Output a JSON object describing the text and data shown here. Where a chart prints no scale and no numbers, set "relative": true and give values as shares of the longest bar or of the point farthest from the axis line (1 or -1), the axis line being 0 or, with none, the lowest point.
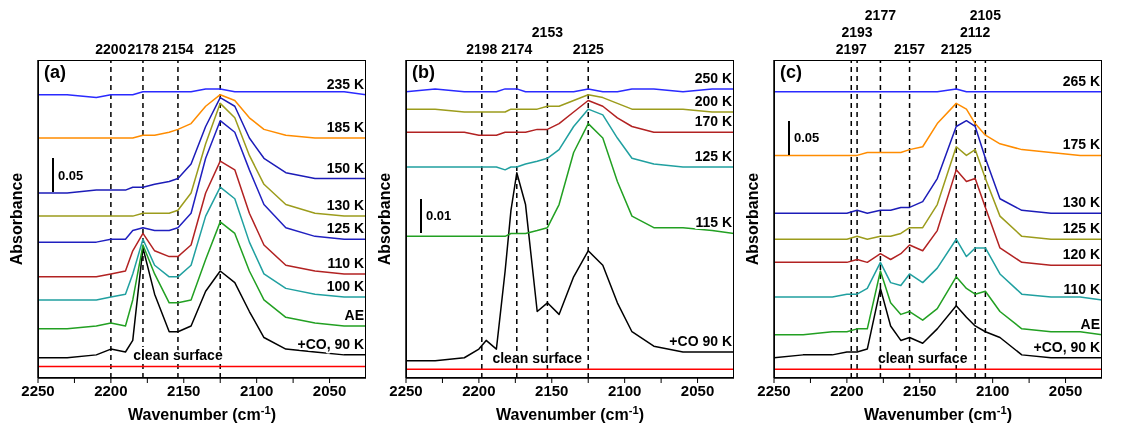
{
  "chart_data": [
    {
      "type": "line",
      "title": "(a)",
      "xlabel": "Wavenumber (cm$^{-1}$)",
      "ylabel": "Absorbance",
      "relative": true,
      "xlim": [
        2250,
        2025
      ],
      "xticks": [
        2250,
        {
          "value": 2225,
          "label": null
        },
        2200,
        {
          "value": 2175,
          "label": null
        },
        2150,
        {
          "value": 2125,
          "label": null
        },
        2100,
        {
          "value": 2075,
          "label": null
        },
        2050
      ],
      "x": [
        2250,
        2230,
        2210,
        2200,
        2190,
        2185,
        2178,
        2170,
        2160,
        2154,
        2145,
        2135,
        2125,
        2115,
        2105,
        2095,
        2080,
        2060,
        2040,
        2025
      ],
      "series": [
        {
          "name": "clean surface",
          "color": "#ff0000",
          "values": [
            0.04,
            0.04,
            0.04,
            0.04,
            0.04,
            0.04,
            0.04,
            0.04,
            0.04,
            0.04,
            0.04,
            0.04,
            0.04,
            0.04,
            0.04,
            0.04,
            0.04,
            0.04,
            0.04,
            0.04
          ]
        },
        {
          "name": "+CO, 90 K",
          "color": "#000000",
          "values": [
            0.07,
            0.07,
            0.08,
            0.1,
            0.09,
            0.13,
            0.45,
            0.29,
            0.16,
            0.16,
            0.18,
            0.3,
            0.37,
            0.33,
            0.23,
            0.14,
            0.1,
            0.09,
            0.08,
            0.08
          ]
        },
        {
          "name": "AE",
          "color": "#22a022",
          "values": [
            0.17,
            0.17,
            0.18,
            0.19,
            0.18,
            0.27,
            0.46,
            0.36,
            0.26,
            0.26,
            0.27,
            0.41,
            0.54,
            0.5,
            0.37,
            0.27,
            0.21,
            0.19,
            0.18,
            0.18
          ]
        },
        {
          "name": "100 K",
          "color": "#20a0a0",
          "values": [
            0.27,
            0.27,
            0.27,
            0.28,
            0.29,
            0.36,
            0.48,
            0.39,
            0.35,
            0.35,
            0.39,
            0.56,
            0.66,
            0.62,
            0.47,
            0.36,
            0.31,
            0.29,
            0.28,
            0.28
          ]
        },
        {
          "name": "110 K",
          "color": "#b22222",
          "values": [
            0.35,
            0.35,
            0.35,
            0.36,
            0.37,
            0.44,
            0.5,
            0.44,
            0.42,
            0.42,
            0.46,
            0.64,
            0.75,
            0.72,
            0.57,
            0.46,
            0.39,
            0.37,
            0.36,
            0.36
          ]
        },
        {
          "name": "125 K",
          "color": "#2020c0",
          "values": [
            0.47,
            0.47,
            0.47,
            0.48,
            0.48,
            0.51,
            0.52,
            0.51,
            0.51,
            0.52,
            0.57,
            0.76,
            0.89,
            0.85,
            0.72,
            0.6,
            0.52,
            0.49,
            0.48,
            0.48
          ]
        },
        {
          "name": "130 K",
          "color": "#9c9c1c",
          "values": [
            0.56,
            0.56,
            0.56,
            0.56,
            0.56,
            0.56,
            0.57,
            0.57,
            0.57,
            0.58,
            0.64,
            0.81,
            0.95,
            0.9,
            0.77,
            0.67,
            0.6,
            0.57,
            0.56,
            0.56
          ]
        },
        {
          "name": "150 K",
          "color": "#1c1cb8",
          "values": [
            0.64,
            0.64,
            0.65,
            0.65,
            0.65,
            0.66,
            0.66,
            0.67,
            0.68,
            0.69,
            0.74,
            0.87,
            0.97,
            0.94,
            0.83,
            0.76,
            0.71,
            0.69,
            0.69,
            0.69
          ]
        },
        {
          "name": "185 K",
          "color": "#ff8c00",
          "values": [
            0.83,
            0.83,
            0.83,
            0.83,
            0.83,
            0.83,
            0.84,
            0.84,
            0.85,
            0.86,
            0.88,
            0.94,
            0.98,
            0.96,
            0.9,
            0.86,
            0.84,
            0.83,
            0.83,
            0.83
          ]
        },
        {
          "name": "235 K",
          "color": "#2a2aff",
          "values": [
            0.98,
            0.98,
            0.97,
            0.98,
            0.98,
            0.98,
            0.99,
            0.99,
            0.99,
            0.99,
            0.99,
            1.0,
            1.0,
            0.99,
            0.99,
            0.99,
            0.99,
            0.99,
            0.99,
            0.98
          ]
        }
      ],
      "ref_lines": [
        {
          "axis": "x",
          "value": 2200,
          "label": "2200",
          "color": "#000000",
          "line_style": "dashed"
        },
        {
          "axis": "x",
          "value": 2178,
          "label": "2178",
          "color": "#000000",
          "line_style": "dashed"
        },
        {
          "axis": "x",
          "value": 2154,
          "label": "2154",
          "color": "#000000",
          "line_style": "dashed"
        },
        {
          "axis": "x",
          "value": 2125,
          "label": "2125",
          "color": "#000000",
          "line_style": "dashed"
        }
      ],
      "annotations": [
        "0.05"
      ]
    },
    {
      "type": "line",
      "title": "(b)",
      "xlabel": "Wavenumber (cm$^{-1}$)",
      "ylabel": "Absorbance",
      "relative": true,
      "xlim": [
        2250,
        2025
      ],
      "xticks": [
        2250,
        {
          "value": 2225,
          "label": null
        },
        2200,
        {
          "value": 2175,
          "label": null
        },
        2150,
        {
          "value": 2125,
          "label": null
        },
        2100,
        {
          "value": 2075,
          "label": null
        },
        2050
      ],
      "x": [
        2250,
        2230,
        2210,
        2200,
        2195,
        2188,
        2182,
        2178,
        2174,
        2168,
        2160,
        2153,
        2145,
        2135,
        2125,
        2115,
        2105,
        2095,
        2080,
        2060,
        2040,
        2025
      ],
      "series": [
        {
          "name": "clean surface",
          "color": "#ff0000",
          "values": [
            0.03,
            0.03,
            0.03,
            0.03,
            0.03,
            0.03,
            0.03,
            0.03,
            0.03,
            0.03,
            0.03,
            0.03,
            0.03,
            0.03,
            0.03,
            0.03,
            0.03,
            0.03,
            0.03,
            0.03,
            0.03,
            0.03
          ]
        },
        {
          "name": "+CO 90 K",
          "color": "#000000",
          "values": [
            0.06,
            0.06,
            0.07,
            0.1,
            0.13,
            0.1,
            0.37,
            0.58,
            0.71,
            0.6,
            0.23,
            0.26,
            0.22,
            0.35,
            0.44,
            0.39,
            0.26,
            0.16,
            0.11,
            0.09,
            0.09,
            0.09
          ]
        },
        {
          "name": "115 K",
          "color": "#22a022",
          "values": [
            0.49,
            0.49,
            0.49,
            0.49,
            0.49,
            0.49,
            0.49,
            0.5,
            0.5,
            0.5,
            0.51,
            0.52,
            0.6,
            0.78,
            0.88,
            0.83,
            0.68,
            0.56,
            0.52,
            0.52,
            0.51,
            0.5
          ]
        },
        {
          "name": "125 K",
          "color": "#20a0a0",
          "values": [
            0.73,
            0.73,
            0.73,
            0.73,
            0.73,
            0.73,
            0.72,
            0.73,
            0.73,
            0.74,
            0.75,
            0.76,
            0.79,
            0.87,
            0.93,
            0.91,
            0.83,
            0.76,
            0.74,
            0.73,
            0.73,
            0.73
          ]
        },
        {
          "name": "170 K",
          "color": "#b22222",
          "values": [
            0.85,
            0.85,
            0.85,
            0.84,
            0.84,
            0.84,
            0.85,
            0.85,
            0.85,
            0.85,
            0.86,
            0.86,
            0.88,
            0.92,
            0.96,
            0.94,
            0.9,
            0.87,
            0.85,
            0.85,
            0.85,
            0.85
          ]
        },
        {
          "name": "200 K",
          "color": "#9c9c1c",
          "values": [
            0.93,
            0.93,
            0.92,
            0.92,
            0.92,
            0.92,
            0.92,
            0.93,
            0.93,
            0.93,
            0.93,
            0.94,
            0.94,
            0.96,
            0.98,
            0.97,
            0.95,
            0.93,
            0.93,
            0.93,
            0.92,
            0.92
          ]
        },
        {
          "name": "250 K",
          "color": "#2a2aff",
          "values": [
            0.99,
            1.0,
            0.99,
            0.99,
            0.99,
            0.99,
            1.0,
            1.0,
            1.0,
            0.99,
            0.99,
            0.99,
            0.99,
            0.99,
            1.0,
            0.99,
            0.99,
            1.0,
            1.0,
            0.99,
            1.0,
            1.0
          ]
        }
      ],
      "ref_lines": [
        {
          "axis": "x",
          "value": 2198,
          "label": "2198",
          "color": "#000000",
          "line_style": "dashed"
        },
        {
          "axis": "x",
          "value": 2174,
          "label": "2174",
          "color": "#000000",
          "line_style": "dashed"
        },
        {
          "axis": "x",
          "value": 2153,
          "label": "2153",
          "color": "#000000",
          "line_style": "dashed"
        },
        {
          "axis": "x",
          "value": 2125,
          "label": "2125",
          "color": "#000000",
          "line_style": "dashed"
        }
      ],
      "annotations": [
        "0.01"
      ]
    },
    {
      "type": "line",
      "title": "(c)",
      "xlabel": "Wavenumber (cm$^{-1}$)",
      "ylabel": "Absorbance",
      "relative": true,
      "xlim": [
        2250,
        2025
      ],
      "xticks": [
        2250,
        {
          "value": 2225,
          "label": null
        },
        2200,
        {
          "value": 2175,
          "label": null
        },
        2150,
        {
          "value": 2125,
          "label": null
        },
        2100,
        {
          "value": 2075,
          "label": null
        },
        2050
      ],
      "x": [
        2250,
        2230,
        2210,
        2200,
        2193,
        2186,
        2177,
        2170,
        2163,
        2157,
        2148,
        2138,
        2125,
        2118,
        2112,
        2105,
        2095,
        2080,
        2060,
        2040,
        2025
      ],
      "series": [
        {
          "name": "clean surface",
          "color": "#ff0000",
          "values": [
            0.03,
            0.03,
            0.03,
            0.03,
            0.03,
            0.03,
            0.03,
            0.03,
            0.03,
            0.03,
            0.03,
            0.03,
            0.03,
            0.03,
            0.03,
            0.03,
            0.03,
            0.03,
            0.03,
            0.03,
            0.03
          ]
        },
        {
          "name": "+CO, 90 K",
          "color": "#000000",
          "values": [
            0.07,
            0.08,
            0.08,
            0.09,
            0.09,
            0.1,
            0.31,
            0.18,
            0.13,
            0.14,
            0.12,
            0.17,
            0.25,
            0.21,
            0.18,
            0.16,
            0.14,
            0.08,
            0.07,
            0.07,
            0.07
          ]
        },
        {
          "name": "AE",
          "color": "#22a022",
          "values": [
            0.15,
            0.15,
            0.16,
            0.16,
            0.17,
            0.17,
            0.37,
            0.26,
            0.22,
            0.23,
            0.2,
            0.24,
            0.35,
            0.31,
            0.29,
            0.3,
            0.23,
            0.17,
            0.16,
            0.16,
            0.15
          ]
        },
        {
          "name": "110 K",
          "color": "#20a0a0",
          "values": [
            0.28,
            0.28,
            0.28,
            0.29,
            0.29,
            0.31,
            0.4,
            0.33,
            0.32,
            0.36,
            0.33,
            0.38,
            0.48,
            0.42,
            0.45,
            0.45,
            0.36,
            0.29,
            0.28,
            0.28,
            0.27
          ]
        },
        {
          "name": "120 K",
          "color": "#b22222",
          "values": [
            0.4,
            0.4,
            0.4,
            0.4,
            0.41,
            0.4,
            0.43,
            0.41,
            0.43,
            0.46,
            0.44,
            0.51,
            0.72,
            0.68,
            0.69,
            0.59,
            0.45,
            0.4,
            0.39,
            0.39,
            0.39
          ]
        },
        {
          "name": "125 K",
          "color": "#9c9c1c",
          "values": [
            0.48,
            0.48,
            0.48,
            0.48,
            0.49,
            0.48,
            0.49,
            0.49,
            0.5,
            0.52,
            0.52,
            0.6,
            0.8,
            0.77,
            0.79,
            0.69,
            0.56,
            0.49,
            0.48,
            0.48,
            0.48
          ]
        },
        {
          "name": "130 K",
          "color": "#1c1cb8",
          "values": [
            0.57,
            0.57,
            0.57,
            0.57,
            0.58,
            0.57,
            0.58,
            0.58,
            0.59,
            0.59,
            0.61,
            0.69,
            0.87,
            0.89,
            0.87,
            0.76,
            0.62,
            0.58,
            0.57,
            0.57,
            0.57
          ]
        },
        {
          "name": "175 K",
          "color": "#ff8c00",
          "values": [
            0.77,
            0.77,
            0.77,
            0.77,
            0.77,
            0.78,
            0.78,
            0.78,
            0.78,
            0.79,
            0.8,
            0.88,
            0.95,
            0.93,
            0.88,
            0.84,
            0.81,
            0.79,
            0.78,
            0.77,
            0.77
          ]
        },
        {
          "name": "265 K",
          "color": "#2a2aff",
          "values": [
            0.99,
            0.99,
            0.99,
            0.99,
            0.99,
            0.99,
            0.99,
            0.99,
            0.99,
            0.99,
            0.99,
            0.99,
            1.0,
            0.99,
            0.99,
            0.99,
            0.99,
            0.99,
            0.99,
            0.99,
            0.99
          ]
        }
      ],
      "ref_lines": [
        {
          "axis": "x",
          "value": 2197,
          "label": "2197",
          "color": "#000000",
          "line_style": "dashed"
        },
        {
          "axis": "x",
          "value": 2193,
          "label": "2193",
          "color": "#000000",
          "line_style": "dashed"
        },
        {
          "axis": "x",
          "value": 2177,
          "label": "2177",
          "color": "#000000",
          "line_style": "dashed"
        },
        {
          "axis": "x",
          "value": 2157,
          "label": "2157",
          "color": "#000000",
          "line_style": "dashed"
        },
        {
          "axis": "x",
          "value": 2125,
          "label": "2125",
          "color": "#000000",
          "line_style": "dashed"
        },
        {
          "axis": "x",
          "value": 2112,
          "label": "2112",
          "color": "#000000",
          "line_style": "dashed"
        },
        {
          "axis": "x",
          "value": 2105,
          "label": "2105",
          "color": "#000000",
          "line_style": "dashed"
        }
      ],
      "annotations": [
        "0.05"
      ]
    }
  ]
}
